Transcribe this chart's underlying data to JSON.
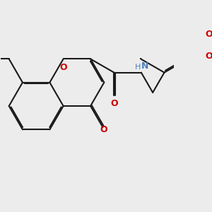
{
  "bg_color": "#ececec",
  "bond_color": "#1a1a1a",
  "oxygen_color": "#cc0000",
  "nitrogen_color": "#4a7fba",
  "lw": 1.5,
  "fs": 8.0,
  "dbo": 0.038,
  "fig_size": [
    3.0,
    3.0
  ],
  "dpi": 100,
  "xlim": [
    -2.6,
    2.8
  ],
  "ylim": [
    -1.5,
    1.5
  ]
}
